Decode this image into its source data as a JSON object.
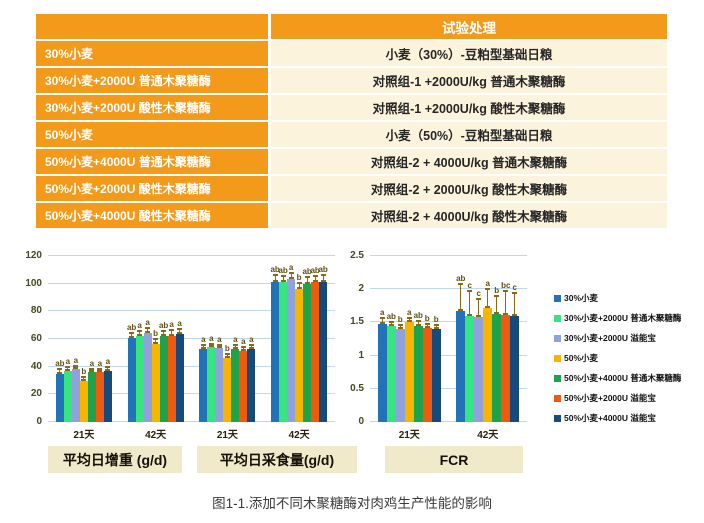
{
  "table": {
    "header": {
      "col1": "",
      "col2": "试验处理"
    },
    "rows": [
      {
        "label": "30%小麦",
        "treatment": "小麦（30%）-豆粕型基础日粮"
      },
      {
        "label": "30%小麦+2000U 普通木聚糖酶",
        "treatment": "对照组-1 +2000U/kg 普通木聚糖酶"
      },
      {
        "label": "30%小麦+2000U 酸性木聚糖酶",
        "treatment": "对照组-1 +2000U/kg 酸性木聚糖酶"
      },
      {
        "label": "50%小麦",
        "treatment": "小麦（50%）-豆粕型基础日粮"
      },
      {
        "label": "50%小麦+4000U 普通木聚糖酶",
        "treatment": "对照组-2 + 4000U/kg 普通木聚糖酶"
      },
      {
        "label": "50%小麦+2000U 酸性木聚糖酶",
        "treatment": "对照组-2 + 2000U/kg 酸性木聚糖酶"
      },
      {
        "label": "50%小麦+4000U 酸性木聚糖酶",
        "treatment": "对照组-2 + 4000U/kg 酸性木聚糖酶"
      }
    ]
  },
  "chart_data": [
    {
      "type": "bar",
      "name": "growth-performance",
      "ylim": [
        0,
        120
      ],
      "yticks": [
        0,
        20,
        40,
        60,
        80,
        100,
        120
      ],
      "grid": true,
      "categories": [
        "21天",
        "42天",
        "21天",
        "42天"
      ],
      "section_labels": [
        "平均日增重 (g/d)",
        "平均日采食量(g/d)"
      ],
      "series": [
        {
          "name": "30%小麦",
          "color": "#2272B8",
          "values": [
            35,
            60.5,
            52.5,
            101
          ],
          "errors": [
            3,
            4,
            3,
            5
          ],
          "letters": [
            "ab",
            "ab",
            "a",
            "ab"
          ]
        },
        {
          "name": "30%小麦+2000U 普通木聚糖酶",
          "color": "#36E57F",
          "values": [
            37,
            62.5,
            54,
            101
          ],
          "errors": [
            2.5,
            3.5,
            2.5,
            4.5
          ],
          "letters": [
            "a",
            "a",
            "a",
            "ab"
          ]
        },
        {
          "name": "30%小麦+2000U 溢能宝",
          "color": "#8FA2DE",
          "values": [
            38,
            64,
            53.5,
            103.5
          ],
          "errors": [
            2.5,
            4,
            2.5,
            4.5
          ],
          "letters": [
            "a",
            "a",
            "a",
            "a"
          ]
        },
        {
          "name": "50%小麦",
          "color": "#F7B500",
          "values": [
            30,
            56.5,
            46.5,
            96.5
          ],
          "errors": [
            2.5,
            3.5,
            2.5,
            4
          ],
          "letters": [
            "b",
            "b",
            "b",
            "b"
          ]
        },
        {
          "name": "50%小麦+4000U 普通木聚糖酶",
          "color": "#1EA24A",
          "values": [
            36,
            62,
            52.5,
            100
          ],
          "errors": [
            2.5,
            4,
            3,
            5
          ],
          "letters": [
            "a",
            "ab",
            "a",
            "ab"
          ]
        },
        {
          "name": "50%小麦+2000U 溢能宝",
          "color": "#F05A0E",
          "values": [
            36,
            62.5,
            51.5,
            101
          ],
          "errors": [
            2.5,
            4,
            3,
            4.5
          ],
          "letters": [
            "a",
            "a",
            "a",
            "ab"
          ]
        },
        {
          "name": "50%小麦+4000U 溢能宝",
          "color": "#174A7C",
          "values": [
            37,
            63.5,
            52.5,
            101.5
          ],
          "errors": [
            2.5,
            4,
            3,
            4.5
          ],
          "letters": [
            "a",
            "a",
            "a",
            "ab"
          ]
        }
      ]
    },
    {
      "type": "bar",
      "name": "fcr",
      "ylim": [
        0,
        2.5
      ],
      "yticks": [
        0,
        0.5,
        1,
        1.5,
        2,
        2.5
      ],
      "grid": true,
      "categories": [
        "21天",
        "42天"
      ],
      "section_labels": [
        "FCR"
      ],
      "series": [
        {
          "name": "30%小麦",
          "color": "#2272B8",
          "values": [
            1.48,
            1.67
          ],
          "errors": [
            0.09,
            0.41
          ],
          "letters": [
            "a",
            "ab"
          ]
        },
        {
          "name": "30%小麦+2000U 普通木聚糖酶",
          "color": "#36E57F",
          "values": [
            1.44,
            1.6
          ],
          "errors": [
            0.07,
            0.37
          ],
          "letters": [
            "ab",
            "c"
          ]
        },
        {
          "name": "30%小麦+2000U 溢能宝",
          "color": "#8FA2DE",
          "values": [
            1.4,
            1.58
          ],
          "errors": [
            0.06,
            0.27
          ],
          "letters": [
            "b",
            "c"
          ]
        },
        {
          "name": "50%小麦",
          "color": "#F7B500",
          "values": [
            1.5,
            1.71
          ],
          "errors": [
            0.07,
            0.29
          ],
          "letters": [
            "a",
            "a"
          ]
        },
        {
          "name": "50%小麦+4000U 普通木聚糖酶",
          "color": "#1EA24A",
          "values": [
            1.45,
            1.63
          ],
          "errors": [
            0.07,
            0.27
          ],
          "letters": [
            "ab",
            "b"
          ]
        },
        {
          "name": "50%小麦+2000U 溢能宝",
          "color": "#F05A0E",
          "values": [
            1.41,
            1.61
          ],
          "errors": [
            0.06,
            0.36
          ],
          "letters": [
            "b",
            "bc"
          ]
        },
        {
          "name": "50%小麦+4000U 溢能宝",
          "color": "#174A7C",
          "values": [
            1.4,
            1.59
          ],
          "errors": [
            0.06,
            0.36
          ],
          "letters": [
            "b",
            "c"
          ]
        }
      ]
    }
  ],
  "section_labels": {
    "adg": "平均日增重 (g/d)",
    "adfi": "平均日采食量(g/d)",
    "fcr": "FCR"
  },
  "legend": {
    "items": [
      {
        "label": "30%小麦",
        "color": "#2272B8"
      },
      {
        "label": "30%小麦+2000U 普通木聚糖酶",
        "color": "#36E57F"
      },
      {
        "label": "30%小麦+2000U 溢能宝",
        "color": "#8FA2DE"
      },
      {
        "label": "50%小麦",
        "color": "#F7B500"
      },
      {
        "label": "50%小麦+4000U 普通木聚糖酶",
        "color": "#1EA24A"
      },
      {
        "label": "50%小麦+2000U 溢能宝",
        "color": "#F05A0E"
      },
      {
        "label": "50%小麦+4000U 溢能宝",
        "color": "#174A7C"
      }
    ]
  },
  "colors": {
    "table_orange": "#F49A1B",
    "table_cream": "#FCF3DC",
    "section_box": "#F1EACA",
    "gridline": "#BFD8EF",
    "error_bar": "#8B6914"
  },
  "caption": "图1-1.添加不同木聚糖酶对肉鸡生产性能的影响"
}
